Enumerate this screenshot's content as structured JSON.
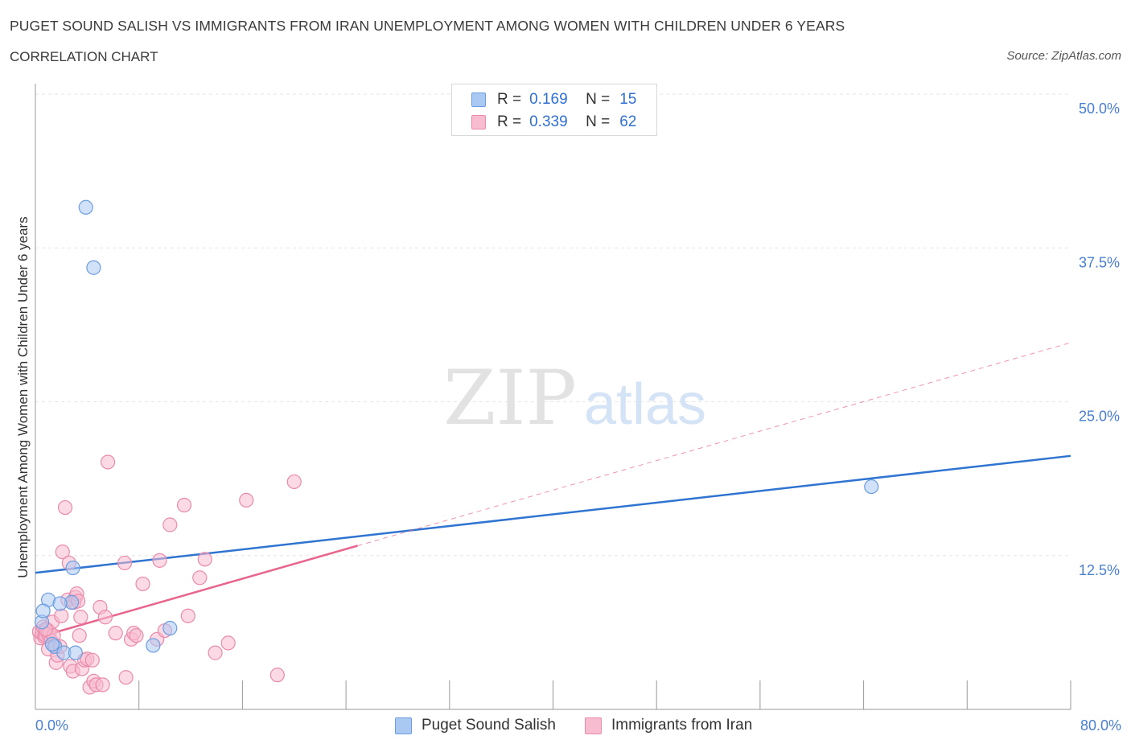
{
  "title": "PUGET SOUND SALISH VS IMMIGRANTS FROM IRAN UNEMPLOYMENT AMONG WOMEN WITH CHILDREN UNDER 6 YEARS",
  "subtitle": "CORRELATION CHART",
  "source": "Source: ZipAtlas.com",
  "watermark": {
    "zip": "ZIP",
    "atlas": "atlas"
  },
  "legend": [
    {
      "r_label": "R =",
      "r_value": "0.169",
      "n_label": "N =",
      "n_value": "15",
      "color": "#a9c8f2",
      "border": "#6b9de0"
    },
    {
      "r_label": "R =",
      "r_value": "0.339",
      "n_label": "N =",
      "n_value": "62",
      "color": "#f7bcd0",
      "border": "#e98aab"
    }
  ],
  "bottom_legend": [
    {
      "label": "Puget Sound Salish",
      "color": "#a9c8f2",
      "border": "#6b9de0"
    },
    {
      "label": "Immigrants from Iran",
      "color": "#f7bcd0",
      "border": "#e98aab"
    }
  ],
  "chart_data": {
    "type": "scatter",
    "title": "PUGET SOUND SALISH VS IMMIGRANTS FROM IRAN UNEMPLOYMENT AMONG WOMEN WITH CHILDREN UNDER 6 YEARS",
    "xlabel": "",
    "ylabel": "Unemployment Among Women with Children Under 6 years",
    "xlim": [
      0,
      80
    ],
    "ylim": [
      0,
      50
    ],
    "x_tick_labels": [
      "0.0%",
      "80.0%"
    ],
    "y_ticks": [
      12.5,
      25.0,
      37.5,
      50.0
    ],
    "y_tick_labels": [
      "12.5%",
      "25.0%",
      "37.5%",
      "50.0%"
    ],
    "grid": true,
    "series": [
      {
        "name": "Puget Sound Salish",
        "color": "#a9c8f2",
        "stroke": "#6b9de0",
        "line_color": "#2f74d0",
        "trend": {
          "x0": 0,
          "y0": 11.1,
          "x1": 80,
          "y1": 20.6
        },
        "points": [
          [
            3.9,
            40.8
          ],
          [
            4.5,
            35.9
          ],
          [
            1.0,
            8.9
          ],
          [
            0.5,
            7.1
          ],
          [
            0.6,
            8.0
          ],
          [
            1.5,
            5.1
          ],
          [
            2.8,
            8.7
          ],
          [
            1.9,
            8.6
          ],
          [
            2.2,
            4.6
          ],
          [
            1.3,
            5.3
          ],
          [
            3.1,
            4.6
          ],
          [
            2.9,
            11.5
          ],
          [
            9.1,
            5.2
          ],
          [
            10.4,
            6.6
          ],
          [
            64.6,
            18.1
          ]
        ]
      },
      {
        "name": "Immigrants from Iran",
        "color": "#f7bcd0",
        "stroke": "#e98aab",
        "line_color": "#e8668e",
        "trend": {
          "x0": 0,
          "y0": 5.8,
          "x1": 24.9,
          "y1": 13.3
        },
        "trend_extension": {
          "x0": 24.9,
          "y0": 13.3,
          "x1": 80,
          "y1": 29.8
        },
        "points": [
          [
            0.3,
            6.3
          ],
          [
            0.4,
            5.8
          ],
          [
            0.5,
            6.2
          ],
          [
            0.6,
            6.7
          ],
          [
            0.7,
            5.9
          ],
          [
            0.8,
            6.0
          ],
          [
            0.9,
            6.5
          ],
          [
            1.0,
            6.1
          ],
          [
            1.1,
            6.3
          ],
          [
            1.2,
            5.6
          ],
          [
            1.3,
            7.1
          ],
          [
            1.4,
            6.0
          ],
          [
            1.0,
            4.9
          ],
          [
            1.5,
            5.2
          ],
          [
            1.6,
            3.8
          ],
          [
            1.7,
            4.4
          ],
          [
            1.9,
            5.1
          ],
          [
            2.0,
            7.6
          ],
          [
            2.1,
            12.8
          ],
          [
            2.3,
            16.4
          ],
          [
            2.5,
            8.9
          ],
          [
            2.6,
            11.9
          ],
          [
            2.7,
            3.5
          ],
          [
            2.9,
            3.1
          ],
          [
            3.0,
            8.7
          ],
          [
            3.1,
            9.1
          ],
          [
            3.2,
            9.4
          ],
          [
            3.3,
            8.8
          ],
          [
            3.4,
            6.0
          ],
          [
            3.5,
            7.5
          ],
          [
            3.6,
            3.3
          ],
          [
            3.8,
            4.0
          ],
          [
            4.0,
            4.1
          ],
          [
            4.2,
            1.8
          ],
          [
            4.4,
            4.0
          ],
          [
            4.5,
            2.3
          ],
          [
            4.7,
            2.0
          ],
          [
            5.0,
            8.3
          ],
          [
            5.2,
            2.0
          ],
          [
            5.4,
            7.5
          ],
          [
            5.6,
            20.1
          ],
          [
            6.2,
            6.2
          ],
          [
            6.9,
            11.9
          ],
          [
            7.0,
            2.6
          ],
          [
            7.4,
            5.7
          ],
          [
            7.6,
            6.2
          ],
          [
            7.8,
            6.0
          ],
          [
            8.3,
            10.2
          ],
          [
            9.4,
            5.7
          ],
          [
            9.6,
            12.1
          ],
          [
            10.0,
            6.4
          ],
          [
            10.4,
            15.0
          ],
          [
            11.5,
            16.6
          ],
          [
            11.8,
            7.6
          ],
          [
            12.7,
            10.7
          ],
          [
            13.1,
            12.2
          ],
          [
            13.9,
            4.6
          ],
          [
            14.9,
            5.4
          ],
          [
            16.3,
            17.0
          ],
          [
            18.7,
            2.8
          ],
          [
            20.0,
            18.5
          ],
          [
            0.8,
            6.5
          ]
        ]
      }
    ]
  }
}
